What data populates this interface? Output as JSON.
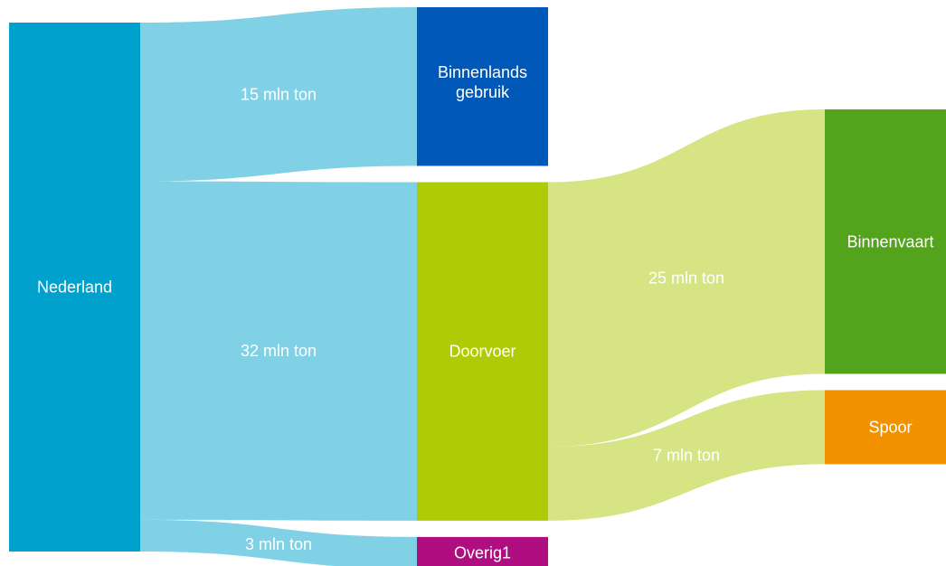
{
  "chart_data": {
    "type": "sankey",
    "unit": "mln ton",
    "nodes": [
      {
        "id": "nederland",
        "label": "Nederland",
        "color": "#00a1cd"
      },
      {
        "id": "binnenlands",
        "label": "Binnenlands gebruik",
        "label_lines": [
          "Binnenlands",
          "gebruik"
        ],
        "color": "#0058b8"
      },
      {
        "id": "doorvoer",
        "label": "Doorvoer",
        "color": "#afcb05"
      },
      {
        "id": "overig1",
        "label": "Overig1",
        "color": "#af0e80"
      },
      {
        "id": "binnenvaart",
        "label": "Binnenvaart",
        "color": "#53a31d"
      },
      {
        "id": "spoor",
        "label": "Spoor",
        "color": "#f39200"
      }
    ],
    "links": [
      {
        "source": "nederland",
        "target": "binnenlands",
        "value": 15,
        "label": "15 mln ton",
        "color": "#80d0e6"
      },
      {
        "source": "nederland",
        "target": "doorvoer",
        "value": 32,
        "label": "32 mln ton",
        "color": "#80d0e6"
      },
      {
        "source": "nederland",
        "target": "overig1",
        "value": 3,
        "label": "3 mln ton",
        "color": "#80d0e6"
      },
      {
        "source": "doorvoer",
        "target": "binnenvaart",
        "value": 25,
        "label": "25 mln ton",
        "color": "#d6e484"
      },
      {
        "source": "doorvoer",
        "target": "spoor",
        "value": 7,
        "label": "7 mln ton",
        "color": "#d6e484"
      }
    ]
  }
}
